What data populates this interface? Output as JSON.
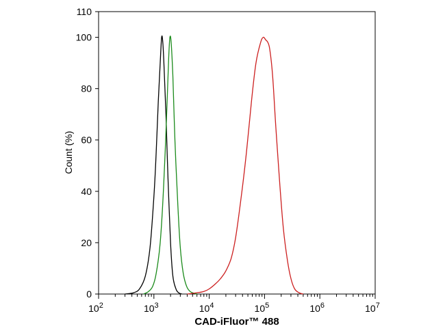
{
  "chart_data": {
    "type": "line",
    "xlabel": "CAD-iFluor™ 488",
    "ylabel": "Count  (%)",
    "x_scale": "log",
    "xlim": [
      100,
      10000000
    ],
    "ylim": [
      0,
      110
    ],
    "x_ticks": [
      {
        "value": 100,
        "base": "10",
        "exp": "2"
      },
      {
        "value": 1000,
        "base": "10",
        "exp": "3"
      },
      {
        "value": 10000,
        "base": "10",
        "exp": "4"
      },
      {
        "value": 100000,
        "base": "10",
        "exp": "5"
      },
      {
        "value": 1000000,
        "base": "10",
        "exp": "6"
      },
      {
        "value": 10000000,
        "base": "10",
        "exp": "7"
      }
    ],
    "y_ticks": [
      0,
      20,
      40,
      60,
      80,
      100,
      110
    ],
    "grid": false,
    "series": [
      {
        "color": "#000000",
        "x": [
          300,
          430,
          550,
          700,
          850,
          1000,
          1100,
          1200,
          1300,
          1380,
          1450,
          1530,
          1650,
          1800,
          2000,
          2200,
          2500,
          2800,
          3200
        ],
        "y": [
          0,
          0.5,
          2,
          7,
          18,
          38,
          55,
          75,
          90,
          100,
          98,
          88,
          70,
          45,
          20,
          7,
          2,
          0.5,
          0
        ]
      },
      {
        "color": "#1a8a1a",
        "x": [
          650,
          800,
          950,
          1100,
          1300,
          1500,
          1700,
          1850,
          1950,
          2050,
          2200,
          2400,
          2700,
          3000,
          3400,
          3900,
          4500,
          5300,
          6000
        ],
        "y": [
          0,
          1,
          3,
          8,
          20,
          42,
          70,
          92,
          100,
          98,
          85,
          60,
          35,
          18,
          8,
          3,
          1,
          0.3,
          0
        ]
      },
      {
        "color": "#cc1f1f",
        "x": [
          4000,
          6000,
          8000,
          10000,
          13000,
          16000,
          20000,
          25000,
          30000,
          38000,
          47000,
          58000,
          70000,
          85000,
          95000,
          105000,
          115000,
          125000,
          140000,
          160000,
          190000,
          220000,
          260000,
          300000,
          350000,
          420000,
          500000
        ],
        "y": [
          0,
          0.5,
          1,
          2,
          4,
          6,
          9,
          14,
          22,
          38,
          55,
          75,
          90,
          98,
          100,
          99,
          98,
          95,
          85,
          65,
          42,
          25,
          13,
          6,
          2,
          0.5,
          0
        ]
      }
    ]
  }
}
